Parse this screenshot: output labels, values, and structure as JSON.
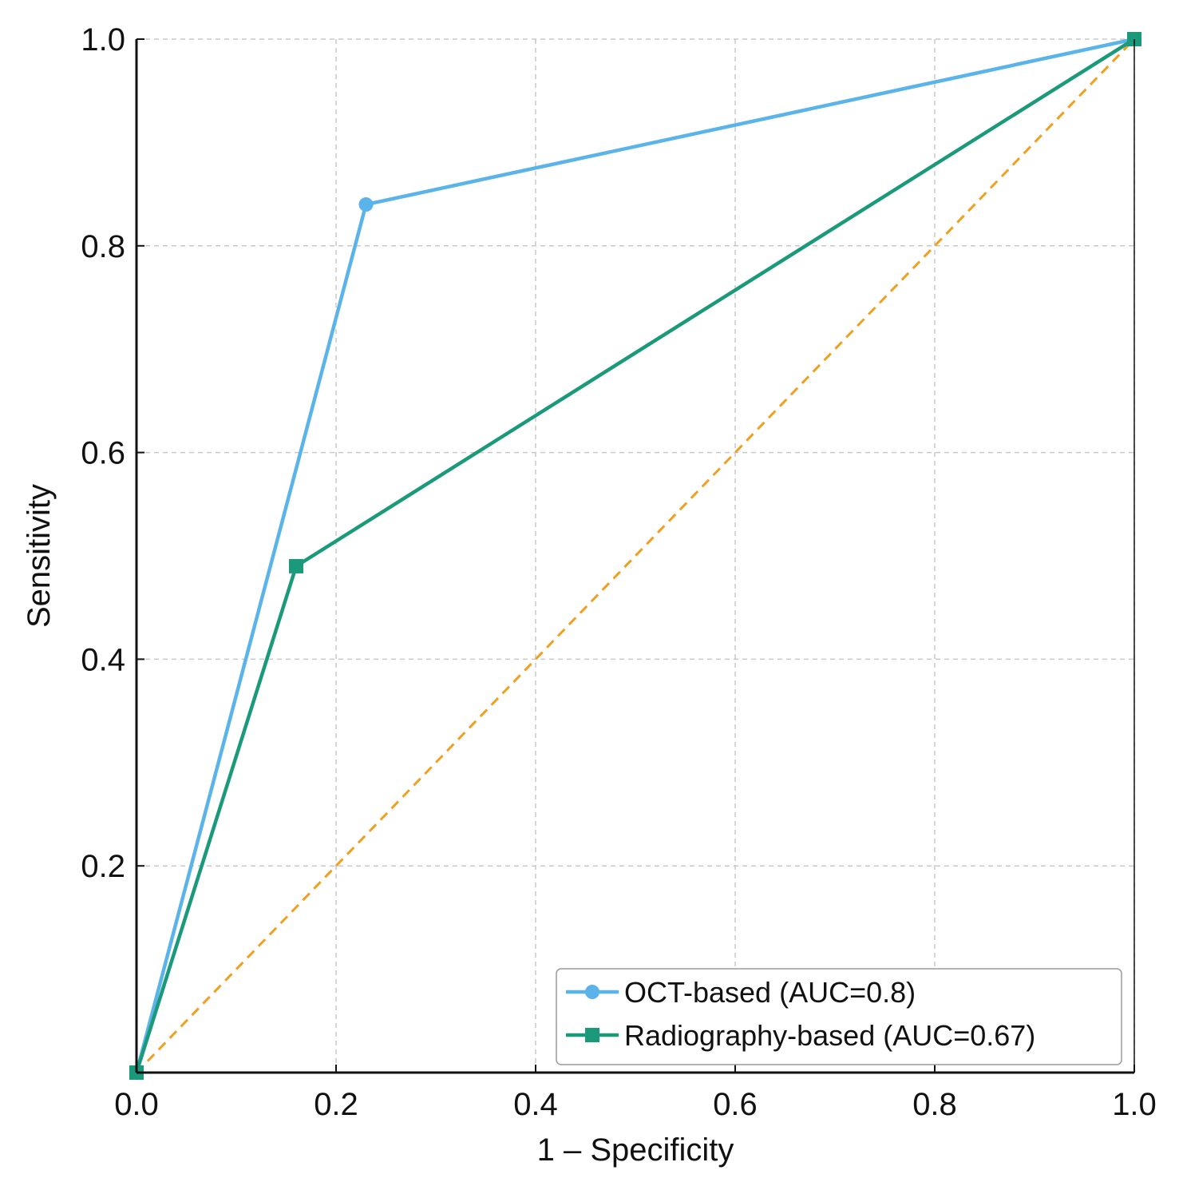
{
  "chart_data": {
    "type": "line",
    "title": "",
    "xlabel": "1 – Specificity",
    "ylabel": "Sensitivity",
    "xlim": [
      0,
      1
    ],
    "ylim": [
      0,
      1
    ],
    "grid": true,
    "x_ticks": [
      0.0,
      0.2,
      0.4,
      0.6,
      0.8,
      1.0
    ],
    "y_ticks": [
      0.2,
      0.4,
      0.6,
      0.8,
      1.0
    ],
    "x_tick_labels": [
      "0.0",
      "0.2",
      "0.4",
      "0.6",
      "0.8",
      "1.0"
    ],
    "y_tick_labels": [
      "0.2",
      "0.4",
      "0.6",
      "0.8",
      "1.0"
    ],
    "legend_position": "bottom-right",
    "series": [
      {
        "name": "OCT-based (AUC=0.8)",
        "color": "#5ab4ea",
        "marker": "circle",
        "x": [
          0.0,
          0.23,
          1.0
        ],
        "y": [
          0.0,
          0.84,
          1.0
        ]
      },
      {
        "name": "Radiography-based (AUC=0.67)",
        "color": "#1a9a7a",
        "marker": "square",
        "x": [
          0.0,
          0.16,
          1.0
        ],
        "y": [
          0.0,
          0.49,
          1.0
        ]
      }
    ],
    "reference_line": {
      "name": "chance",
      "color": "#f0a020",
      "style": "dashed",
      "x": [
        0,
        1
      ],
      "y": [
        0,
        1
      ]
    }
  }
}
